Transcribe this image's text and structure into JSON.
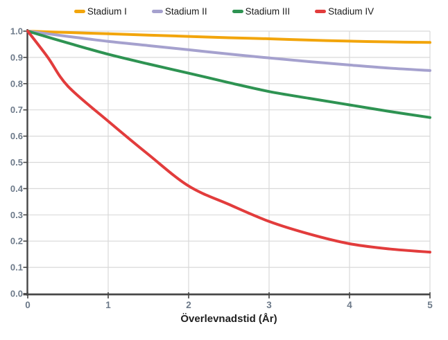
{
  "chart_data": {
    "type": "line",
    "title": "",
    "xlabel": "Överlevnadstid (År)",
    "ylabel": "",
    "xlim": [
      0,
      5
    ],
    "ylim": [
      0.0,
      1.0
    ],
    "x_ticks": [
      0,
      1,
      2,
      3,
      4,
      5
    ],
    "y_ticks": [
      0.0,
      0.1,
      0.2,
      0.3,
      0.4,
      0.5,
      0.6,
      0.7,
      0.8,
      0.9,
      1.0
    ],
    "grid": true,
    "legend_position": "top-center",
    "colors": {
      "background": "#FFFFFF",
      "grid": "#D9D9D9",
      "axis": "#454545",
      "tick_label": "#6C7989",
      "axis_label": "#1F1F1F",
      "legend_text": "#1B1B1B"
    },
    "series": [
      {
        "name": "Stadium I",
        "color": "#F2A50C",
        "points": [
          [
            0,
            1.0
          ],
          [
            0.5,
            0.995
          ],
          [
            1,
            0.99
          ],
          [
            1.5,
            0.985
          ],
          [
            2,
            0.98
          ],
          [
            2.5,
            0.975
          ],
          [
            3,
            0.971
          ],
          [
            3.5,
            0.966
          ],
          [
            4,
            0.962
          ],
          [
            4.5,
            0.959
          ],
          [
            5,
            0.957
          ]
        ]
      },
      {
        "name": "Stadium II",
        "color": "#A5A1CE",
        "points": [
          [
            0,
            1.0
          ],
          [
            0.5,
            0.98
          ],
          [
            1,
            0.961
          ],
          [
            1.5,
            0.945
          ],
          [
            2,
            0.929
          ],
          [
            2.5,
            0.913
          ],
          [
            3,
            0.898
          ],
          [
            3.5,
            0.884
          ],
          [
            4,
            0.871
          ],
          [
            4.5,
            0.859
          ],
          [
            5,
            0.85
          ]
        ]
      },
      {
        "name": "Stadium III",
        "color": "#2E9352",
        "points": [
          [
            0,
            1.0
          ],
          [
            0.5,
            0.955
          ],
          [
            1,
            0.912
          ],
          [
            1.5,
            0.875
          ],
          [
            2,
            0.84
          ],
          [
            2.5,
            0.804
          ],
          [
            3,
            0.77
          ],
          [
            3.5,
            0.744
          ],
          [
            4,
            0.719
          ],
          [
            4.5,
            0.694
          ],
          [
            5,
            0.671
          ]
        ]
      },
      {
        "name": "Stadium IV",
        "color": "#E23C3C",
        "points": [
          [
            0,
            1.0
          ],
          [
            0.25,
            0.9
          ],
          [
            0.5,
            0.79
          ],
          [
            1,
            0.657
          ],
          [
            1.5,
            0.53
          ],
          [
            2,
            0.41
          ],
          [
            2.5,
            0.34
          ],
          [
            3,
            0.275
          ],
          [
            3.5,
            0.227
          ],
          [
            4,
            0.19
          ],
          [
            4.5,
            0.17
          ],
          [
            5,
            0.158
          ]
        ]
      }
    ]
  }
}
